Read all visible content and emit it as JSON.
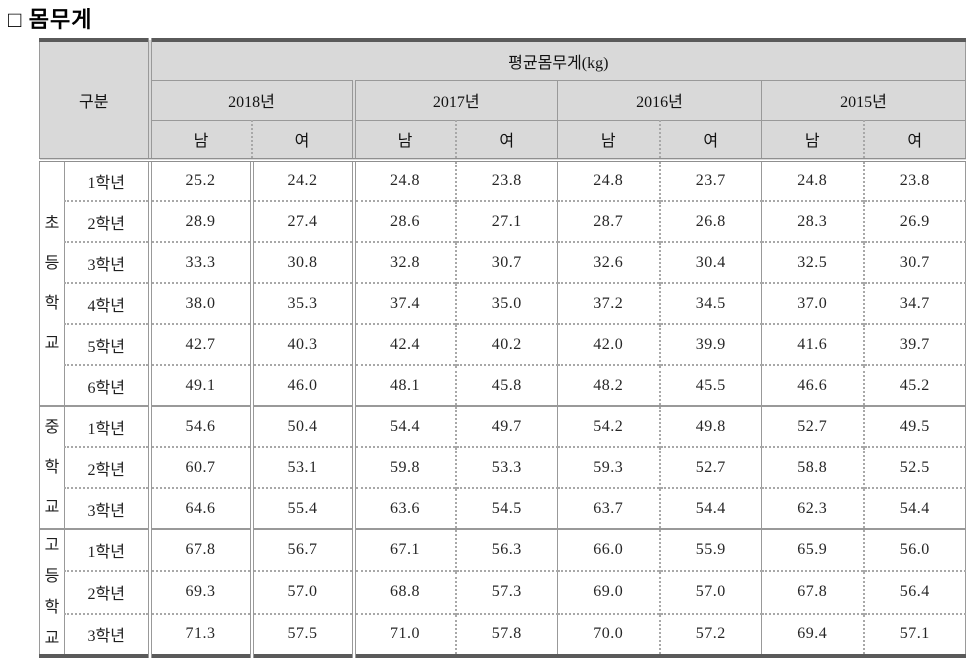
{
  "title": "□ 몸무게",
  "table": {
    "corner": "구분",
    "metric_header": "평균몸무게(kg)",
    "years": {
      "y2018": "2018년",
      "y2017": "2017년",
      "y2016": "2016년",
      "y2015": "2015년"
    },
    "male": "남",
    "female": "여",
    "sections": [
      {
        "name": "초\n등\n학\n교",
        "rows": [
          {
            "grade": "1학년",
            "v": [
              "25.2",
              "24.2",
              "24.8",
              "23.8",
              "24.8",
              "23.7",
              "24.8",
              "23.8"
            ]
          },
          {
            "grade": "2학년",
            "v": [
              "28.9",
              "27.4",
              "28.6",
              "27.1",
              "28.7",
              "26.8",
              "28.3",
              "26.9"
            ]
          },
          {
            "grade": "3학년",
            "v": [
              "33.3",
              "30.8",
              "32.8",
              "30.7",
              "32.6",
              "30.4",
              "32.5",
              "30.7"
            ]
          },
          {
            "grade": "4학년",
            "v": [
              "38.0",
              "35.3",
              "37.4",
              "35.0",
              "37.2",
              "34.5",
              "37.0",
              "34.7"
            ]
          },
          {
            "grade": "5학년",
            "v": [
              "42.7",
              "40.3",
              "42.4",
              "40.2",
              "42.0",
              "39.9",
              "41.6",
              "39.7"
            ]
          },
          {
            "grade": "6학년",
            "v": [
              "49.1",
              "46.0",
              "48.1",
              "45.8",
              "48.2",
              "45.5",
              "46.6",
              "45.2"
            ]
          }
        ]
      },
      {
        "name": "중\n학\n교",
        "rows": [
          {
            "grade": "1학년",
            "v": [
              "54.6",
              "50.4",
              "54.4",
              "49.7",
              "54.2",
              "49.8",
              "52.7",
              "49.5"
            ]
          },
          {
            "grade": "2학년",
            "v": [
              "60.7",
              "53.1",
              "59.8",
              "53.3",
              "59.3",
              "52.7",
              "58.8",
              "52.5"
            ]
          },
          {
            "grade": "3학년",
            "v": [
              "64.6",
              "55.4",
              "63.6",
              "54.5",
              "63.7",
              "54.4",
              "62.3",
              "54.4"
            ]
          }
        ]
      },
      {
        "name": "고\n등\n학\n교",
        "rows": [
          {
            "grade": "1학년",
            "v": [
              "67.8",
              "56.7",
              "67.1",
              "56.3",
              "66.0",
              "55.9",
              "65.9",
              "56.0"
            ]
          },
          {
            "grade": "2학년",
            "v": [
              "69.3",
              "57.0",
              "68.8",
              "57.3",
              "69.0",
              "57.0",
              "67.8",
              "56.4"
            ]
          },
          {
            "grade": "3학년",
            "v": [
              "71.3",
              "57.5",
              "71.0",
              "57.8",
              "70.0",
              "57.2",
              "69.4",
              "57.1"
            ]
          }
        ]
      }
    ]
  },
  "colors": {
    "header_bg": "#d9d9d9",
    "grid_line": "#999999",
    "frame_line": "#5a5a5a",
    "text": "#1f1f1f"
  }
}
